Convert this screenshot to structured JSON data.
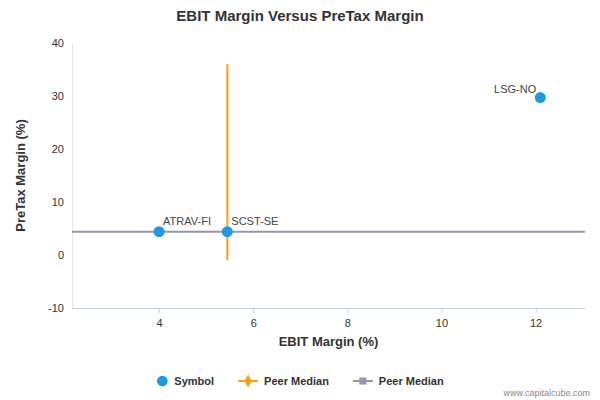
{
  "chart_data": {
    "type": "scatter",
    "title": "EBIT Margin Versus PreTax Margin",
    "x_label": "EBIT Margin (%)",
    "y_label": "PreTax Margin (%)",
    "source": "www.capitalcube.com",
    "xlim": [
      2.15,
      13.05
    ],
    "xticks": [
      4,
      6,
      8,
      10,
      12
    ],
    "ylim": [
      -10,
      40
    ],
    "yticks": [
      -10,
      0,
      10,
      20,
      30,
      40
    ],
    "grid": false,
    "legend": "bottom",
    "series": [
      {
        "name": "Symbol",
        "type": "scatter",
        "marker": "circle",
        "color": "#1e9ae0",
        "labels": [
          "ATRAV-FI",
          "SCST-SE",
          "LSG-NO"
        ],
        "x": [
          4.0,
          5.45,
          12.1
        ],
        "values": [
          4.4,
          4.4,
          29.7
        ]
      },
      {
        "name": "Peer Median",
        "type": "line",
        "marker": "diamond",
        "line_style": "solid",
        "color": "#f5a31a",
        "x": [
          5.45,
          5.45
        ],
        "values": [
          -1,
          36
        ]
      },
      {
        "name": "Peer Median",
        "type": "line",
        "marker": "square",
        "line_style": "solid",
        "color": "#9497a8",
        "x": [
          2.15,
          13.05
        ],
        "values": [
          4.4,
          4.4
        ]
      }
    ]
  }
}
